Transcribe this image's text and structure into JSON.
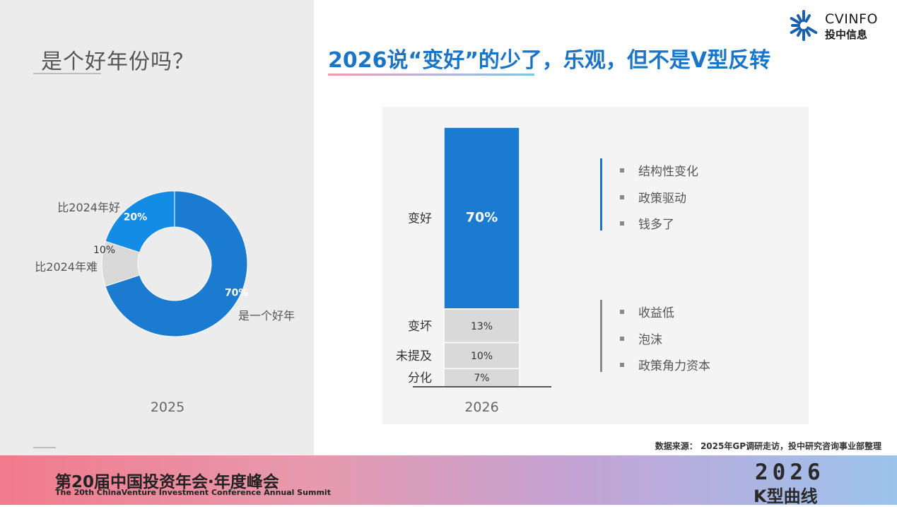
{
  "left": {
    "title": "是个好年份吗？"
  },
  "main_title": "2026说“变好”的少了，乐观，但不是V型反转",
  "logo": {
    "line1": "CVINFO",
    "line2": "投中信息",
    "icon": "sunburst-logo-icon",
    "color": "#1a5fae"
  },
  "chart_data": [
    {
      "type": "pie",
      "donut": true,
      "xlabel": "2025",
      "slices": [
        {
          "label": "是一个好年",
          "value": 70,
          "value_label": "70%",
          "color": "#1a7bd0"
        },
        {
          "label": "比2024年难",
          "value": 10,
          "value_label": "10%",
          "color": "#d9d9d9"
        },
        {
          "label": "比2024年好",
          "value": 20,
          "value_label": "20%",
          "color": "#138ce6"
        }
      ]
    },
    {
      "type": "bar",
      "stacked": true,
      "xlabel": "2026",
      "categories": [
        "2026"
      ],
      "series": [
        {
          "name": "变好",
          "value": 70,
          "value_label": "70%",
          "color": "#1a7bd0"
        },
        {
          "name": "变坏",
          "value": 13,
          "value_label": "13%",
          "color": "#d9d9d9"
        },
        {
          "name": "未提及",
          "value": 10,
          "value_label": "10%",
          "color": "#d9d9d9"
        },
        {
          "name": "分化",
          "value": 7,
          "value_label": "7%",
          "color": "#d9d9d9"
        }
      ],
      "ylim": [
        0,
        100
      ]
    }
  ],
  "notes": {
    "positive": {
      "color": "#1a75c8",
      "items": [
        "结构性变化",
        "政策驱动",
        "钱多了"
      ]
    },
    "negative": {
      "color": "#888888",
      "items": [
        "收益低",
        "泡沫",
        "政策角力资本"
      ]
    }
  },
  "source": "数据来源：  2025年GP调研走访，投中研究咨询事业部整理",
  "footer": {
    "title": "第20届中国投资年会·年度峰会",
    "subtitle": "The 20th ChinaVenture Investment Conference Annual Summit",
    "year": "2026",
    "slogan": "K型曲线"
  }
}
